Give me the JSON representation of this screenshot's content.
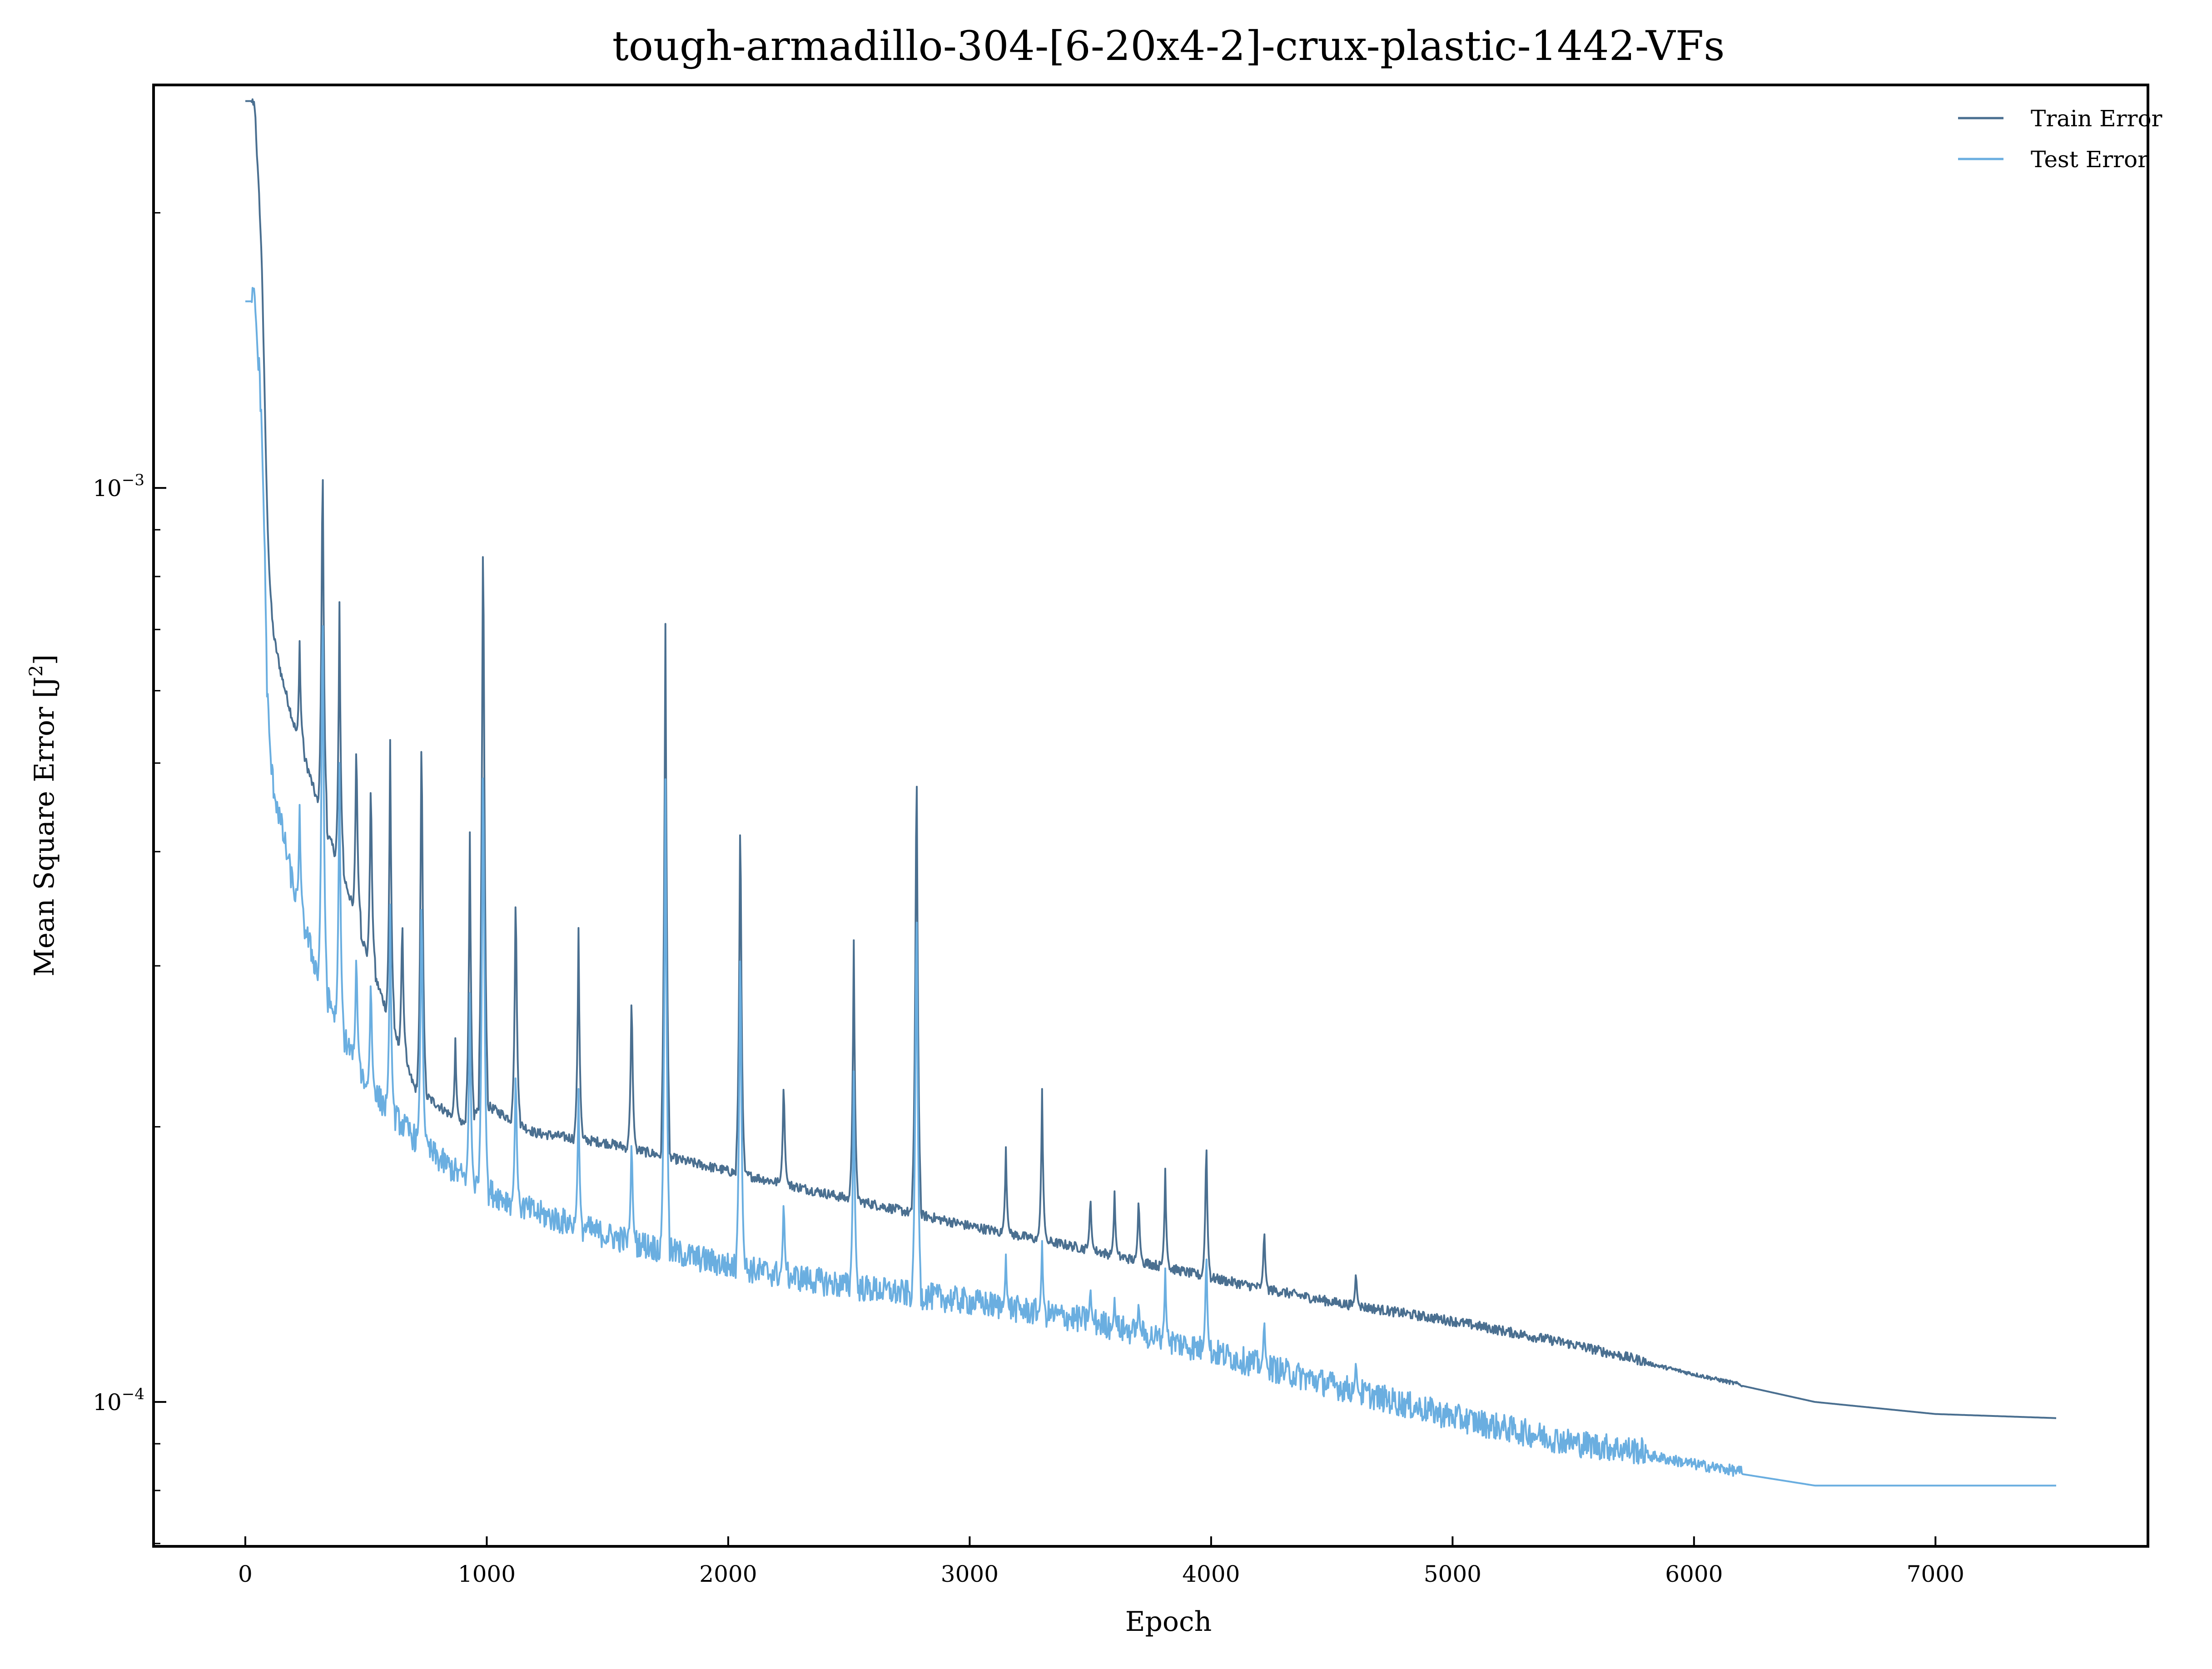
{
  "chart_data": {
    "type": "line",
    "title": "tough-armadillo-304-[6-20x4-2]-crux-plastic-1442-VFs",
    "xlabel": "Epoch",
    "ylabel_main": "Mean Square Error [J",
    "ylabel_sup": "2",
    "ylabel_close": "]",
    "xlim": [
      -380,
      7880
    ],
    "ylim": [
      6.95e-05,
      0.00276
    ],
    "yscale": "log",
    "grid": false,
    "legend_position": "top-right",
    "x_ticks": [
      0,
      1000,
      2000,
      3000,
      4000,
      5000,
      6000,
      7000
    ],
    "x_tick_labels": [
      "0",
      "1000",
      "2000",
      "3000",
      "4000",
      "5000",
      "6000",
      "7000"
    ],
    "y_major_ticks": [
      {
        "value": 0.001,
        "base": "10",
        "exp": "−3"
      },
      {
        "value": 0.0001,
        "base": "10",
        "exp": "−4"
      }
    ],
    "y_minor_ticks": [
      7e-05,
      8e-05,
      9e-05,
      0.0002,
      0.0003,
      0.0004,
      0.0005,
      0.0006,
      0.0007,
      0.0008,
      0.0009,
      0.002
    ],
    "series": [
      {
        "name": "Train Error",
        "color": "#4a6f90",
        "x": [
          0,
          25,
          40,
          50,
          60,
          70,
          80,
          90,
          100,
          110,
          120,
          150,
          200,
          250,
          300,
          350,
          400,
          500,
          600,
          700,
          800,
          900,
          1000,
          1200,
          1500,
          2000,
          2500,
          3000,
          3500,
          4000,
          4500,
          5000,
          5500,
          6000,
          6500,
          7000,
          7500
        ],
        "y": [
          0.00265,
          0.00265,
          0.0026,
          0.00225,
          0.002,
          0.0017,
          0.00125,
          0.00095,
          0.0008,
          0.00072,
          0.00068,
          0.00062,
          0.00055,
          0.0005,
          0.00045,
          0.00041,
          0.00038,
          0.00031,
          0.00026,
          0.00022,
          0.00021,
          0.0002,
          0.00021,
          0.000196,
          0.000191,
          0.000178,
          0.000166,
          0.000155,
          0.000146,
          0.000136,
          0.000128,
          0.000122,
          0.000115,
          0.000107,
          0.0001,
          9.7e-05,
          9.6e-05
        ],
        "spikes": [
          [
            225,
            0.00068
          ],
          [
            320,
            0.00115
          ],
          [
            390,
            0.00075
          ],
          [
            460,
            0.00055
          ],
          [
            520,
            0.0005
          ],
          [
            600,
            0.00053
          ],
          [
            650,
            0.00035
          ],
          [
            730,
            0.00058
          ],
          [
            870,
            0.00025
          ],
          [
            930,
            0.00042
          ],
          [
            985,
            0.00098
          ],
          [
            1120,
            0.00038
          ],
          [
            1380,
            0.00033
          ],
          [
            1600,
            0.00029
          ],
          [
            1740,
            0.00071
          ],
          [
            2050,
            0.00047
          ],
          [
            2230,
            0.00023
          ],
          [
            2520,
            0.00032
          ],
          [
            2780,
            0.00054
          ],
          [
            3150,
            0.00019
          ],
          [
            3300,
            0.00022
          ],
          [
            3500,
            0.00017
          ],
          [
            3600,
            0.00017
          ],
          [
            3700,
            0.00017
          ],
          [
            3810,
            0.00018
          ],
          [
            3980,
            0.0002
          ],
          [
            4220,
            0.000157
          ],
          [
            4600,
            0.00014
          ]
        ]
      },
      {
        "name": "Test Error",
        "color": "#6aaee0",
        "x": [
          0,
          25,
          40,
          50,
          60,
          70,
          80,
          90,
          100,
          110,
          120,
          150,
          200,
          300,
          400,
          500,
          600,
          700,
          800,
          900,
          1000,
          1200,
          1500,
          2000,
          2500,
          3000,
          3500,
          4000,
          4500,
          5000,
          5500,
          5800,
          6000,
          6500,
          7000,
          7500
        ],
        "y": [
          0.0016,
          0.0016,
          0.00158,
          0.0014,
          0.0013,
          0.0011,
          0.00085,
          0.0006,
          0.00052,
          0.00048,
          0.00046,
          0.00042,
          0.00036,
          0.00029,
          0.00025,
          0.00022,
          0.000205,
          0.000192,
          0.000182,
          0.000174,
          0.000168,
          0.000159,
          0.00015,
          0.000139,
          0.000132,
          0.000127,
          0.000121,
          0.000112,
          0.000103,
          9.5e-05,
          8.9e-05,
          8.7e-05,
          8.5e-05,
          8.1e-05,
          8.1e-05,
          8.1e-05
        ],
        "spikes": [
          [
            225,
            0.00045
          ],
          [
            320,
            0.0008
          ],
          [
            390,
            0.0005
          ],
          [
            460,
            0.00032
          ],
          [
            520,
            0.0003
          ],
          [
            600,
            0.00035
          ],
          [
            730,
            0.00038
          ],
          [
            930,
            0.00028
          ],
          [
            985,
            0.00055
          ],
          [
            1120,
            0.00024
          ],
          [
            1380,
            0.00022
          ],
          [
            1600,
            0.0002
          ],
          [
            1740,
            0.00048
          ],
          [
            2050,
            0.00034
          ],
          [
            2230,
            0.00017
          ],
          [
            2520,
            0.00023
          ],
          [
            2780,
            0.00038
          ],
          [
            3150,
            0.000145
          ],
          [
            3300,
            0.00015
          ],
          [
            3500,
            0.000135
          ],
          [
            3600,
            0.00013
          ],
          [
            3700,
            0.00013
          ],
          [
            3810,
            0.00014
          ],
          [
            3980,
            0.00015
          ],
          [
            4220,
            0.000125
          ],
          [
            4600,
            0.000112
          ]
        ]
      }
    ]
  }
}
